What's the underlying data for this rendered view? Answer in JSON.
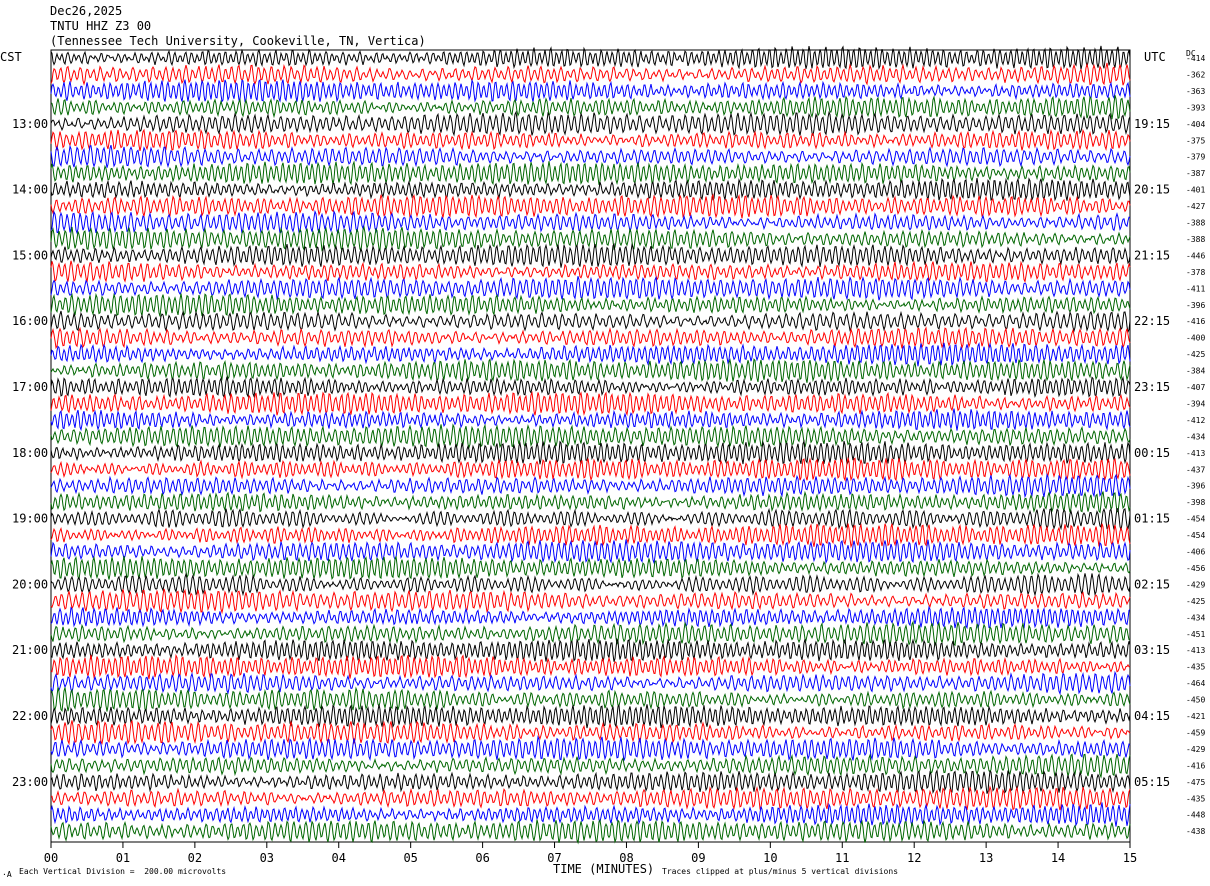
{
  "header": {
    "date": "Dec26,2025",
    "station": "TNTU HHZ Z3 00",
    "location": "(Tennessee Tech University, Cookeville, TN, Vertica)"
  },
  "corner_labels": {
    "left": "CST",
    "right": "UTC",
    "dc": "DC"
  },
  "footer": {
    "division_note": "Each Vertical Division =  200.00 microvolts",
    "clip_note": "Traces clipped at plus/minus 5 vertical divisions",
    "corner_mark": "·A"
  },
  "chart_data": {
    "type": "line",
    "title": "TNTU HHZ Z3 00",
    "xlabel": "TIME (MINUTES)",
    "xlim": [
      0,
      15
    ],
    "x_ticks": [
      "00",
      "01",
      "02",
      "03",
      "04",
      "05",
      "06",
      "07",
      "08",
      "09",
      "10",
      "11",
      "12",
      "13",
      "14",
      "15"
    ],
    "trace_colors": [
      "#000000",
      "#ff0000",
      "#0000ff",
      "#006600"
    ],
    "left_time_labels": [
      "13:00",
      "14:00",
      "15:00",
      "16:00",
      "17:00",
      "18:00",
      "19:00",
      "20:00",
      "21:00",
      "22:00",
      "23:00"
    ],
    "right_time_labels": [
      "19:15",
      "20:15",
      "21:15",
      "22:15",
      "23:15",
      "00:15",
      "01:15",
      "02:15",
      "03:15",
      "04:15",
      "05:15"
    ],
    "dc_offsets": [
      "-414",
      "-362",
      "-363",
      "-393",
      "-404",
      "-375",
      "-379",
      "-387",
      "-401",
      "-427",
      "-388",
      "-388",
      "-446",
      "-378",
      "-411",
      "-396",
      "-416",
      "-400",
      "-425",
      "-384",
      "-407",
      "-394",
      "-412",
      "-434",
      "-413",
      "-437",
      "-396",
      "-398",
      "-454",
      "-454",
      "-406",
      "-456",
      "-429",
      "-425",
      "-434",
      "-451",
      "-413",
      "-435",
      "-464",
      "-450",
      "-421",
      "-459",
      "-429",
      "-416",
      "-475",
      "-435",
      "-448",
      "-438"
    ]
  }
}
